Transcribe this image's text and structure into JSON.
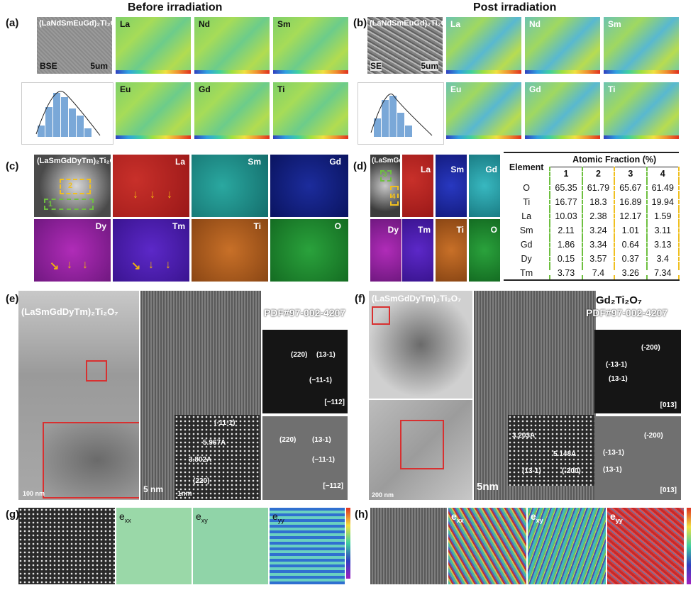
{
  "headers": {
    "before": "Before irradiation",
    "post": "Post irradiation"
  },
  "panel_labels": {
    "a": "(a)",
    "b": "(b)",
    "c": "(c)",
    "d": "(d)",
    "e": "(e)",
    "f": "(f)",
    "g": "(g)",
    "h": "(h)"
  },
  "panel_a": {
    "compound": "(LaNdSmEuGd)₂Ti₂O₇",
    "mode": "BSE",
    "scale": "5um",
    "elements": [
      "La",
      "Nd",
      "Sm",
      "Eu",
      "Gd",
      "Ti"
    ]
  },
  "panel_b": {
    "compound": "(LaNdSmEuGd)₂Ti₂O",
    "mode": "SE",
    "scale": "5um",
    "elements": [
      "La",
      "Nd",
      "Sm",
      "Eu",
      "Gd",
      "Ti"
    ]
  },
  "panel_c": {
    "compound": "(LaSmGdDyTm)₂Ti₂O₇",
    "elements": [
      "La",
      "Sm",
      "Gd",
      "Dy",
      "Tm",
      "Ti",
      "O"
    ],
    "region_labels": [
      "2",
      "1"
    ]
  },
  "panel_d": {
    "compound": "(LaSmGdDyTm)₂Ti₂O₇",
    "elements": [
      "La",
      "Sm",
      "Gd",
      "Dy",
      "Tm",
      "Ti",
      "O"
    ],
    "region_labels": [
      "3",
      "4"
    ]
  },
  "atomic_table": {
    "title": "Atomic Fraction (%)",
    "element_header": "Element",
    "columns": [
      "1",
      "2",
      "3",
      "4"
    ],
    "rows": [
      {
        "el": "O",
        "v": [
          "65.35",
          "61.79",
          "65.67",
          "61.49"
        ]
      },
      {
        "el": "Ti",
        "v": [
          "16.77",
          "18.3",
          "16.89",
          "19.94"
        ]
      },
      {
        "el": "La",
        "v": [
          "10.03",
          "2.38",
          "12.17",
          "1.59"
        ]
      },
      {
        "el": "Sm",
        "v": [
          "2.11",
          "3.24",
          "1.01",
          "3.11"
        ]
      },
      {
        "el": "Gd",
        "v": [
          "1.86",
          "3.34",
          "0.64",
          "3.13"
        ]
      },
      {
        "el": "Dy",
        "v": [
          "0.15",
          "3.57",
          "0.37",
          "3.4"
        ]
      },
      {
        "el": "Tm",
        "v": [
          "3.73",
          "7.4",
          "3.26",
          "7.34"
        ]
      }
    ]
  },
  "panel_e": {
    "compound": "(LaSmGdDyTm)₂Ti₂O₇",
    "phase": "Gd₂Ti₂O₇",
    "pdf": "PDF#97-002-4207",
    "scale_main": "5 nm",
    "scale_inset": "1nm",
    "scale_tem": "100 nm",
    "d1": "5.967A",
    "d2": "3.802A",
    "plane_11_1": "(-11-1)",
    "plane_220": "(220)",
    "saed": [
      "(220)",
      "(13-1)",
      "(−11-1)",
      "[−112]"
    ],
    "fft": [
      "(220)",
      "(13-1)",
      "(−11-1)",
      "[−112]"
    ]
  },
  "panel_f": {
    "compound": "(LaSmGdDyTm)₂Ti₂O₇",
    "phase": "Gd₂Ti₂O₇",
    "pdf": "PDF#97-002-4207",
    "scale_main": "5nm",
    "scale_tem": "200 nm",
    "d1": "3.203A",
    "d2": "5.148A",
    "plane_13_1": "(13-1)",
    "plane_200": "(-200)",
    "saed": [
      "(-200)",
      "(-13-1)",
      "(13-1)",
      "[013]"
    ],
    "fft": [
      "(-200)",
      "(-13-1)",
      "(13-1)",
      "[013]"
    ]
  },
  "panel_g": {
    "labels": [
      "e",
      "xx",
      "e",
      "xy",
      "e",
      "yy"
    ]
  },
  "panel_h": {
    "labels": [
      "e",
      "xx",
      "e",
      "xy",
      "e",
      "yy"
    ]
  }
}
